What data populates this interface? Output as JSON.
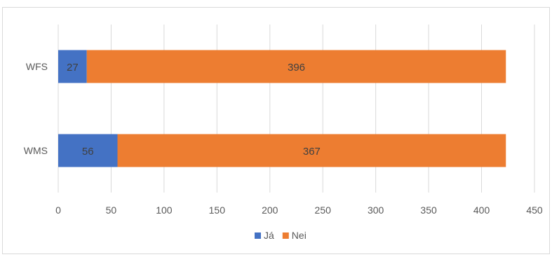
{
  "chart_data": {
    "type": "bar",
    "orientation": "horizontal",
    "stacked": true,
    "categories": [
      "WFS",
      "WMS"
    ],
    "series": [
      {
        "name": "Já",
        "values": [
          27,
          56
        ],
        "color": "#4472C4"
      },
      {
        "name": "Nei",
        "values": [
          396,
          367
        ],
        "color": "#ED7D31"
      }
    ],
    "xlim": [
      0,
      450
    ],
    "xticks": [
      0,
      50,
      100,
      150,
      200,
      250,
      300,
      350,
      400,
      450
    ],
    "title": "",
    "xlabel": "",
    "ylabel": "",
    "grid": true,
    "legend_position": "bottom",
    "data_labels": true
  }
}
